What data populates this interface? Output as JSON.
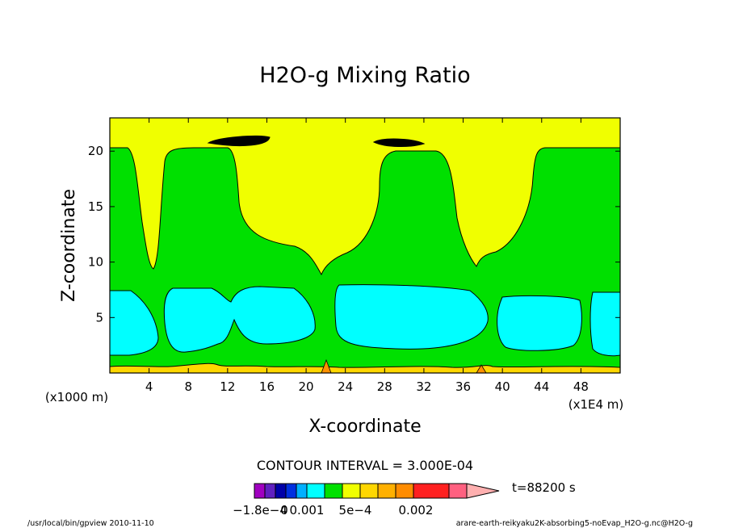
{
  "chart_data": {
    "type": "heatmap",
    "title": "H2O-g Mixing Ratio",
    "xlabel": "X-coordinate",
    "ylabel": "Z-coordinate",
    "x_unit": "(x1E4 m)",
    "y_unit": "(x1000 m)",
    "xlim": [
      0,
      52
    ],
    "ylim": [
      0,
      23
    ],
    "x_ticks": [
      4,
      8,
      12,
      16,
      20,
      24,
      28,
      32,
      36,
      40,
      44,
      48
    ],
    "y_ticks": [
      5,
      10,
      15,
      20
    ],
    "contour_interval_text": "CONTOUR INTERVAL = 3.000E-04",
    "time_text": "t=88200 s",
    "colorbar_labels": [
      "−1.8e−4",
      "0",
      "0.001",
      "5e−4",
      "0.002"
    ],
    "colorbar_colors": [
      "#a000c0",
      "#6020c0",
      "#0000a8",
      "#0030e0",
      "#00b0ff",
      "#00ffff",
      "#00e000",
      "#f0ff00",
      "#ffd700",
      "#ffb000",
      "#ff8c00",
      "#ff2020",
      "#ff6080",
      "#ffb0b0"
    ],
    "field_colors": {
      "background": "#f0ff00",
      "green_band": "#00e000",
      "cyan_band": "#00ffff",
      "surface_layer": "#ffd700",
      "surface_spike": "#ff9000"
    }
  },
  "footer": {
    "left": "/usr/local/bin/gpview  2010-11-10",
    "right": "arare-earth-reikyaku2K-absorbing5-noEvap_H2O-g.nc@H2O-g"
  }
}
